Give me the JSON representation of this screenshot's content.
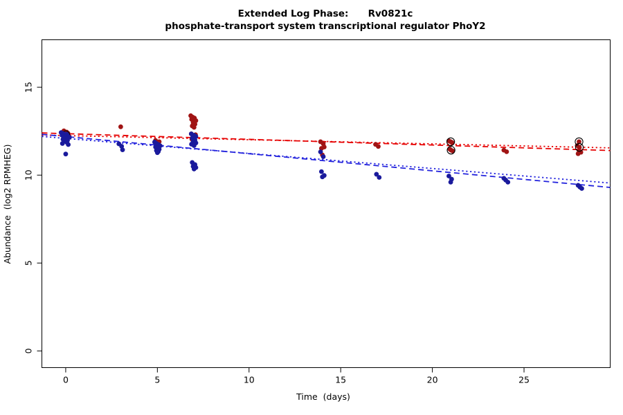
{
  "chart_data": {
    "type": "scatter",
    "title": "Extended Log Phase:      Rv0821c",
    "subtitle": "phosphate-transport system transcriptional regulator PhoY2",
    "xlabel": "Time  (days)",
    "ylabel": "Abundance  (log2 RPMHEG)",
    "xlim": [
      -1.3,
      29.7
    ],
    "ylim": [
      -0.95,
      17.7
    ],
    "xticks": [
      0,
      5,
      10,
      15,
      20,
      25
    ],
    "yticks": [
      0,
      5,
      10,
      15
    ],
    "grid": false,
    "legend": "none",
    "colors": {
      "box": "#000000",
      "background": "#ffffff",
      "red_points": "#a01414",
      "red_line": "#e60000",
      "blue_points": "#1a1a9c",
      "blue_line": "#2222dd",
      "circle_marker": "#000000"
    },
    "series": [
      {
        "name": "red-condition",
        "point_color": "#a01414",
        "line_color": "#e60000",
        "points": [
          [
            -0.1,
            12.52
          ],
          [
            0.05,
            12.45
          ],
          [
            0.12,
            12.38
          ],
          [
            -0.05,
            12.32
          ],
          [
            0.15,
            12.27
          ],
          [
            0.02,
            12.2
          ],
          [
            3.0,
            12.75
          ],
          [
            4.9,
            11.97
          ],
          [
            5.1,
            11.9
          ],
          [
            6.82,
            13.38
          ],
          [
            6.92,
            13.3
          ],
          [
            7.02,
            13.25
          ],
          [
            6.87,
            13.17
          ],
          [
            7.1,
            13.1
          ],
          [
            6.95,
            13.0
          ],
          [
            7.05,
            12.9
          ],
          [
            6.9,
            12.8
          ],
          [
            7.0,
            12.72
          ],
          [
            6.85,
            12.35
          ],
          [
            7.08,
            12.3
          ],
          [
            6.95,
            12.22
          ],
          [
            7.03,
            12.13
          ],
          [
            6.88,
            12.05
          ],
          [
            13.9,
            11.9
          ],
          [
            14.05,
            11.78
          ],
          [
            14.1,
            11.6
          ],
          [
            13.95,
            11.52
          ],
          [
            14.0,
            11.15
          ],
          [
            16.9,
            11.75
          ],
          [
            17.05,
            11.63
          ],
          [
            20.9,
            11.95
          ],
          [
            21.08,
            11.85
          ],
          [
            20.95,
            11.48
          ],
          [
            21.1,
            11.38
          ],
          [
            23.9,
            11.42
          ],
          [
            24.05,
            11.33
          ],
          [
            27.9,
            11.68
          ],
          [
            28.0,
            11.4
          ],
          [
            28.1,
            11.3
          ],
          [
            27.95,
            11.22
          ]
        ],
        "circled_points": [
          [
            0.0,
            12.3
          ],
          [
            21.0,
            11.9
          ],
          [
            21.02,
            11.42
          ],
          [
            28.0,
            11.9
          ],
          [
            28.02,
            11.58
          ]
        ],
        "fits": [
          {
            "style": "dashed",
            "x": [
              -1.3,
              29.7
            ],
            "y": [
              12.4,
              11.4
            ]
          },
          {
            "style": "dotted",
            "x": [
              -1.3,
              29.7
            ],
            "y": [
              12.28,
              11.55
            ]
          }
        ]
      },
      {
        "name": "blue-condition",
        "point_color": "#1a1a9c",
        "line_color": "#2222dd",
        "points": [
          [
            -0.25,
            12.42
          ],
          [
            -0.12,
            12.36
          ],
          [
            0.05,
            12.33
          ],
          [
            -0.2,
            12.27
          ],
          [
            0.1,
            12.24
          ],
          [
            -0.04,
            12.18
          ],
          [
            0.2,
            12.15
          ],
          [
            0.0,
            12.1
          ],
          [
            -0.15,
            12.04
          ],
          [
            0.1,
            11.98
          ],
          [
            -0.06,
            11.93
          ],
          [
            0.06,
            11.87
          ],
          [
            -0.18,
            11.8
          ],
          [
            0.14,
            11.74
          ],
          [
            0.0,
            11.2
          ],
          [
            2.9,
            11.78
          ],
          [
            3.05,
            11.64
          ],
          [
            3.1,
            11.44
          ],
          [
            4.85,
            11.88
          ],
          [
            4.95,
            11.8
          ],
          [
            5.06,
            11.74
          ],
          [
            5.15,
            11.67
          ],
          [
            4.9,
            11.6
          ],
          [
            5.0,
            11.54
          ],
          [
            5.1,
            11.47
          ],
          [
            4.95,
            11.4
          ],
          [
            5.05,
            11.34
          ],
          [
            5.0,
            11.28
          ],
          [
            6.85,
            12.35
          ],
          [
            7.0,
            12.27
          ],
          [
            7.1,
            12.2
          ],
          [
            6.9,
            12.1
          ],
          [
            7.05,
            12.0
          ],
          [
            6.95,
            11.9
          ],
          [
            7.1,
            11.83
          ],
          [
            6.86,
            11.76
          ],
          [
            7.0,
            11.68
          ],
          [
            6.9,
            10.72
          ],
          [
            7.05,
            10.6
          ],
          [
            6.95,
            10.5
          ],
          [
            7.1,
            10.43
          ],
          [
            7.0,
            10.35
          ],
          [
            13.9,
            11.32
          ],
          [
            14.05,
            11.05
          ],
          [
            13.95,
            10.2
          ],
          [
            14.1,
            9.98
          ],
          [
            14.0,
            9.9
          ],
          [
            16.95,
            10.05
          ],
          [
            17.1,
            9.87
          ],
          [
            20.9,
            9.95
          ],
          [
            21.05,
            9.77
          ],
          [
            21.0,
            9.6
          ],
          [
            23.9,
            9.82
          ],
          [
            24.0,
            9.72
          ],
          [
            24.12,
            9.6
          ],
          [
            27.95,
            9.42
          ],
          [
            28.05,
            9.32
          ],
          [
            28.15,
            9.24
          ]
        ],
        "circled_points": [],
        "fits": [
          {
            "style": "dashed",
            "x": [
              -1.3,
              29.7
            ],
            "y": [
              12.32,
              9.3
            ]
          },
          {
            "style": "dotted",
            "x": [
              -1.3,
              29.7
            ],
            "y": [
              12.2,
              9.55
            ]
          }
        ]
      }
    ]
  }
}
